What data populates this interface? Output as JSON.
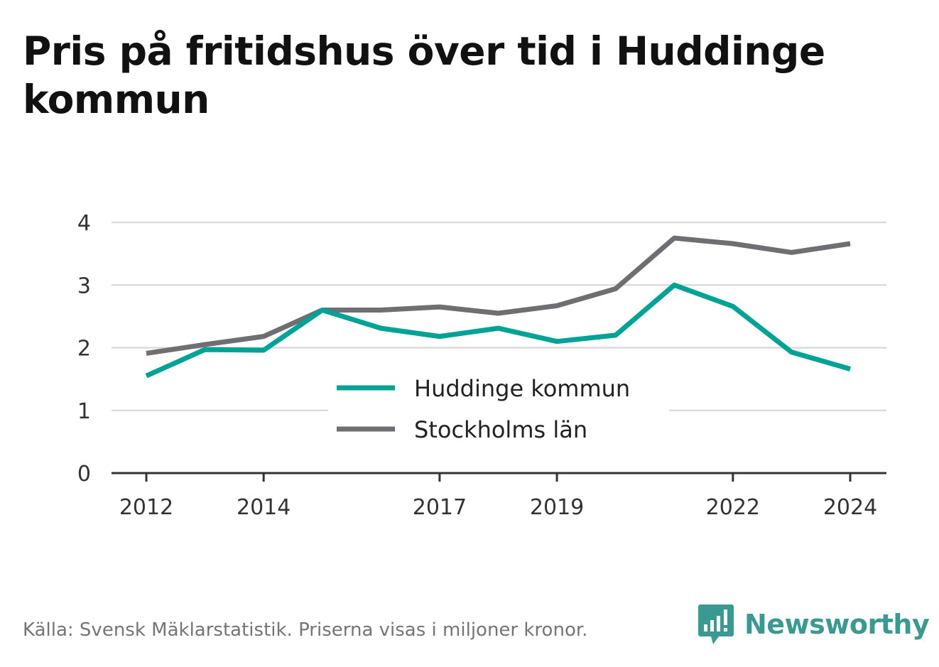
{
  "title": "Pris på fritidshus över tid i Huddinge kommun",
  "footer": {
    "source": "Källa: Svensk Mäklarstatistik. Priserna visas i miljoner kronor."
  },
  "brand": {
    "name": "Newsworthy",
    "logo_icon": "newsworthy-logo-icon",
    "color": "#3a9a92"
  },
  "chart_data": {
    "type": "line",
    "title": "Pris på fritidshus över tid i Huddinge kommun",
    "xlabel": "",
    "ylabel": "",
    "x": [
      2012,
      2013,
      2014,
      2015,
      2016,
      2017,
      2018,
      2019,
      2020,
      2021,
      2022,
      2023,
      2024
    ],
    "x_ticks": [
      "2012",
      "2014",
      "2017",
      "2019",
      "2022",
      "2024"
    ],
    "y_ticks": [
      "0",
      "1",
      "2",
      "3",
      "4"
    ],
    "ylim": [
      0,
      4
    ],
    "grid": true,
    "legend_position": "center",
    "series": [
      {
        "name": "Huddinge kommun",
        "color": "#00a396",
        "values": [
          1.55,
          1.97,
          1.96,
          2.6,
          2.31,
          2.18,
          2.31,
          2.1,
          2.2,
          3.0,
          2.66,
          1.93,
          1.66
        ]
      },
      {
        "name": "Stockholms län",
        "color": "#6e6e73",
        "values": [
          1.91,
          2.05,
          2.18,
          2.6,
          2.6,
          2.65,
          2.55,
          2.67,
          2.94,
          3.75,
          3.66,
          3.52,
          3.66
        ]
      }
    ]
  }
}
